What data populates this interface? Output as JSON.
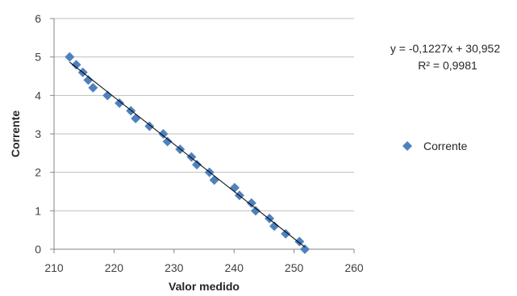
{
  "chart_data": {
    "type": "scatter",
    "title": "",
    "xlabel": "Valor medido",
    "ylabel": "Corrente",
    "xlim": [
      210,
      260
    ],
    "ylim": [
      0,
      6
    ],
    "xticks": [
      "210",
      "220",
      "230",
      "240",
      "250",
      "260"
    ],
    "yticks": [
      "0",
      "1",
      "2",
      "3",
      "4",
      "5",
      "6"
    ],
    "grid": "horizontal",
    "legend_position": "right",
    "series": [
      {
        "name": "Corrente",
        "color": "#4F81BD",
        "marker": "diamond",
        "points": [
          [
            212.6,
            5.0
          ],
          [
            213.7,
            4.8
          ],
          [
            214.8,
            4.6
          ],
          [
            215.7,
            4.4
          ],
          [
            216.5,
            4.2
          ],
          [
            218.9,
            4.0
          ],
          [
            220.9,
            3.8
          ],
          [
            222.8,
            3.6
          ],
          [
            223.6,
            3.4
          ],
          [
            225.9,
            3.2
          ],
          [
            228.2,
            3.0
          ],
          [
            228.9,
            2.8
          ],
          [
            231.0,
            2.6
          ],
          [
            232.9,
            2.4
          ],
          [
            233.8,
            2.2
          ],
          [
            235.9,
            2.0
          ],
          [
            236.7,
            1.8
          ],
          [
            240.1,
            1.6
          ],
          [
            240.9,
            1.4
          ],
          [
            242.9,
            1.2
          ],
          [
            243.6,
            1.0
          ],
          [
            245.9,
            0.8
          ],
          [
            246.7,
            0.6
          ],
          [
            248.6,
            0.4
          ],
          [
            250.9,
            0.2
          ],
          [
            251.8,
            0.0
          ]
        ]
      }
    ],
    "trendline": {
      "type": "linear",
      "slope": -0.1227,
      "intercept": 30.952,
      "color": "#000000",
      "equation_label": "y = -0,1227x + 30,952",
      "r2_label": "R² = 0,9981"
    }
  }
}
